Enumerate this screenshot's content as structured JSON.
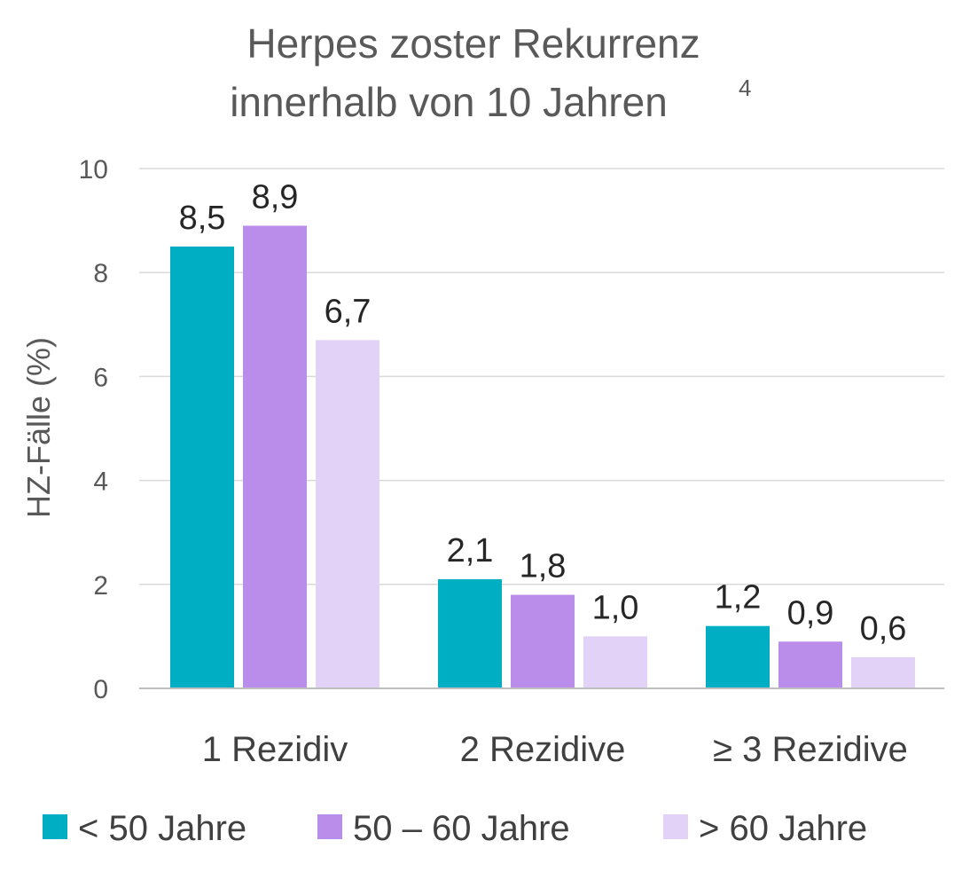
{
  "chart_data": {
    "type": "bar",
    "title": {
      "line1": "Herpes zoster Rekurrenz",
      "line2": "innerhalb von 10 Jahren",
      "superscript": "4"
    },
    "xlabel": "",
    "ylabel": "HZ-Fälle (%)",
    "ylim": [
      0,
      10
    ],
    "yticks": [
      0,
      2,
      4,
      6,
      8,
      10
    ],
    "ytick_labels": [
      "0",
      "2",
      "4",
      "6",
      "8",
      "10"
    ],
    "grid": true,
    "legend_position": "bottom",
    "categories": [
      "1 Rezidiv",
      "2 Rezidive",
      "≥ 3 Rezidive"
    ],
    "series": [
      {
        "name": "< 50 Jahre",
        "color": "#00AEC4",
        "values": [
          8.5,
          2.1,
          1.2
        ],
        "labels": [
          "8,5",
          "2,1",
          "1,2"
        ]
      },
      {
        "name": "50 – 60 Jahre",
        "color": "#BB8DEA",
        "values": [
          8.9,
          1.8,
          0.9
        ],
        "labels": [
          "8,9",
          "1,8",
          "0,9"
        ]
      },
      {
        "name": "> 60 Jahre",
        "color": "#E3D2F7",
        "values": [
          6.7,
          1.0,
          0.6
        ],
        "labels": [
          "6,7",
          "1,0",
          "0,6"
        ]
      }
    ]
  }
}
